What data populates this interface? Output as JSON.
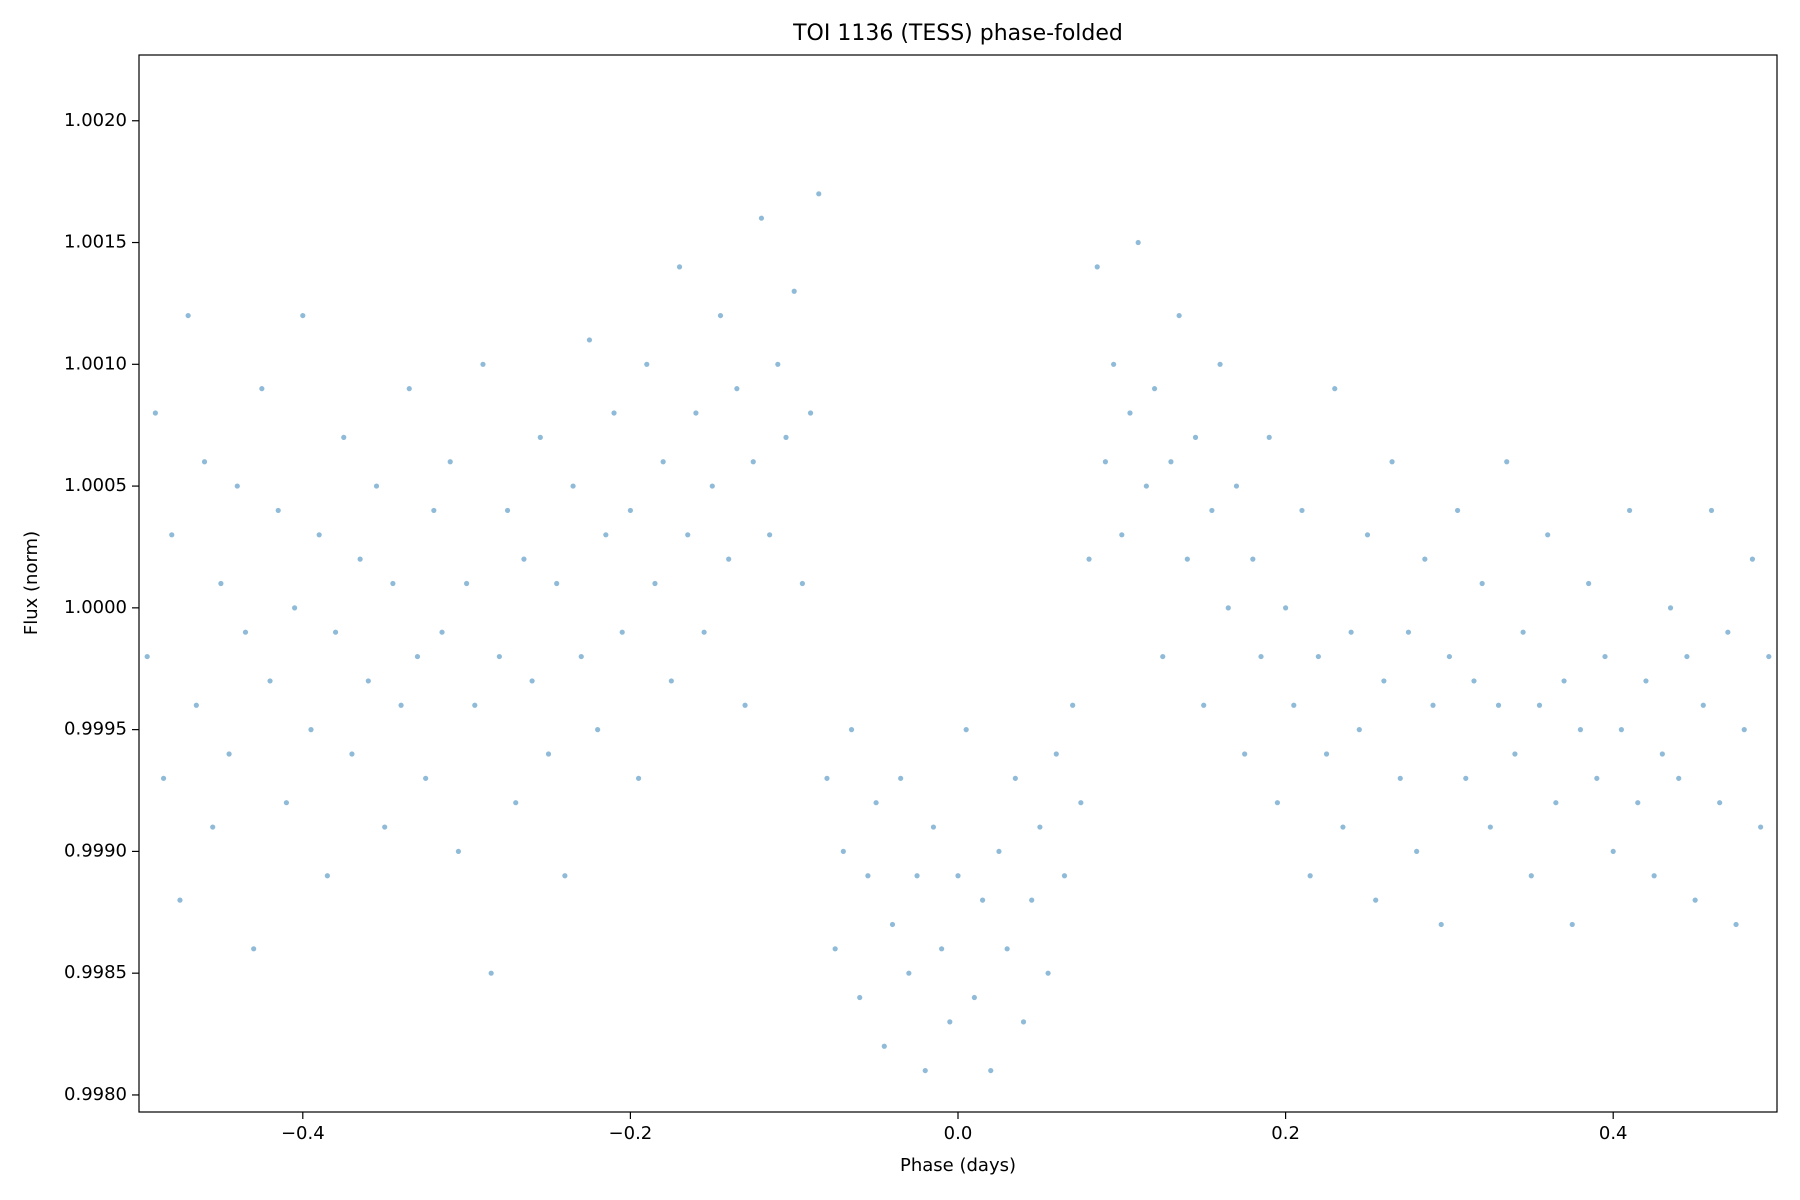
{
  "chart_data": {
    "type": "scatter",
    "title": "TOI 1136 (TESS) phase-folded",
    "x_label": "Phase (days)",
    "y_label": "Flux (norm)",
    "color": "#1f77b4",
    "xlim": [
      -0.5,
      0.5
    ],
    "xticks": [
      {
        "value": -0.4,
        "label": "−0.4"
      },
      {
        "value": -0.2,
        "label": "−0.2"
      },
      {
        "value": 0,
        "label": "0.0"
      },
      0.2,
      0.4
    ],
    "ylim": [
      0.99793,
      1.00227
    ],
    "yticks": [
      {
        "value": 0.998,
        "label": "0.9980"
      },
      0.9985,
      {
        "value": 0.999,
        "label": "0.9990"
      },
      0.9995,
      {
        "value": 1,
        "label": "1.0000"
      },
      1.0005,
      {
        "value": 1.001,
        "label": "1.0010"
      },
      1.0015,
      {
        "value": 1.002,
        "label": "1.0020"
      }
    ],
    "x": [
      -0.495,
      -0.49,
      -0.485,
      -0.48,
      -0.475,
      -0.47,
      -0.465,
      -0.46,
      -0.455,
      -0.45,
      -0.445,
      -0.44,
      -0.435,
      -0.43,
      -0.425,
      -0.42,
      -0.415,
      -0.41,
      -0.405,
      -0.4,
      -0.395,
      -0.39,
      -0.385,
      -0.38,
      -0.375,
      -0.37,
      -0.365,
      -0.36,
      -0.355,
      -0.35,
      -0.345,
      -0.34,
      -0.335,
      -0.33,
      -0.325,
      -0.32,
      -0.315,
      -0.31,
      -0.305,
      -0.3,
      -0.295,
      -0.29,
      -0.285,
      -0.28,
      -0.275,
      -0.27,
      -0.265,
      -0.26,
      -0.255,
      -0.25,
      -0.245,
      -0.24,
      -0.235,
      -0.23,
      -0.225,
      -0.22,
      -0.215,
      -0.21,
      -0.205,
      -0.2,
      -0.195,
      -0.19,
      -0.185,
      -0.18,
      -0.175,
      -0.17,
      -0.165,
      -0.16,
      -0.155,
      -0.15,
      -0.145,
      -0.14,
      -0.135,
      -0.13,
      -0.125,
      -0.12,
      -0.115,
      -0.11,
      -0.105,
      -0.1,
      -0.095,
      -0.09,
      -0.085,
      -0.08,
      -0.075,
      -0.07,
      -0.065,
      -0.06,
      -0.055,
      -0.05,
      -0.045,
      -0.04,
      -0.035,
      -0.03,
      -0.025,
      -0.02,
      -0.015,
      -0.01,
      -0.005,
      0,
      0.005,
      0.01,
      0.015,
      0.02,
      0.025,
      0.03,
      0.035,
      0.04,
      0.045,
      0.05,
      0.055,
      0.06,
      0.065,
      0.07,
      0.075,
      0.08,
      0.085,
      0.09,
      0.095,
      0.1,
      0.105,
      0.11,
      0.115,
      0.12,
      0.125,
      0.13,
      0.135,
      0.14,
      0.145,
      0.15,
      0.155,
      0.16,
      0.165,
      0.17,
      0.175,
      0.18,
      0.185,
      0.19,
      0.195,
      0.2,
      0.205,
      0.21,
      0.215,
      0.22,
      0.225,
      0.23,
      0.235,
      0.24,
      0.245,
      0.25,
      0.255,
      0.26,
      0.265,
      0.27,
      0.275,
      0.28,
      0.285,
      0.29,
      0.295,
      0.3,
      0.305,
      0.31,
      0.315,
      0.32,
      0.325,
      0.33,
      0.335,
      0.34,
      0.345,
      0.35,
      0.355,
      0.36,
      0.365,
      0.37,
      0.375,
      0.38,
      0.385,
      0.39,
      0.395,
      0.4,
      0.405,
      0.41,
      0.415,
      0.42,
      0.425,
      0.43,
      0.435,
      0.44,
      0.445,
      0.45,
      0.455,
      0.46,
      0.465,
      0.47,
      0.475,
      0.48,
      0.485,
      0.49,
      0.495
    ],
    "values": [
      0.9998,
      1.0008,
      0.9993,
      1.0003,
      0.9988,
      1.0012,
      0.9996,
      1.0006,
      0.9991,
      1.0001,
      0.9994,
      1.0005,
      0.9999,
      0.9986,
      1.0009,
      0.9997,
      1.0004,
      0.9992,
      1.0,
      1.0012,
      0.9995,
      1.0003,
      0.9989,
      0.9999,
      1.0007,
      0.9994,
      1.0002,
      0.9997,
      1.0005,
      0.9991,
      1.0001,
      0.9996,
      1.0009,
      0.9998,
      0.9993,
      1.0004,
      0.9999,
      1.0006,
      0.999,
      1.0001,
      0.9996,
      1.001,
      0.9985,
      0.9998,
      1.0004,
      0.9992,
      1.0002,
      0.9997,
      1.0007,
      0.9994,
      1.0001,
      0.9989,
      1.0005,
      0.9998,
      1.0011,
      0.9995,
      1.0003,
      1.0008,
      0.9999,
      1.0004,
      0.9993,
      1.001,
      1.0001,
      1.0006,
      0.9997,
      1.0014,
      1.0003,
      1.0008,
      0.9999,
      1.0005,
      1.0012,
      1.0002,
      1.0009,
      0.9996,
      1.0006,
      1.0016,
      1.0003,
      1.001,
      1.0007,
      1.0013,
      1.0001,
      1.0008,
      1.0017,
      0.9993,
      0.9986,
      0.999,
      0.9995,
      0.9984,
      0.9989,
      0.9992,
      0.9982,
      0.9987,
      0.9993,
      0.9985,
      0.9989,
      0.9981,
      0.9991,
      0.9986,
      0.9983,
      0.9989,
      0.9995,
      0.9984,
      0.9988,
      0.9981,
      0.999,
      0.9986,
      0.9993,
      0.9983,
      0.9988,
      0.9991,
      0.9985,
      0.9994,
      0.9989,
      0.9996,
      0.9992,
      1.0002,
      1.0014,
      1.0006,
      1.001,
      1.0003,
      1.0008,
      1.0015,
      1.0005,
      1.0009,
      0.9998,
      1.0006,
      1.0012,
      1.0002,
      1.0007,
      0.9996,
      1.0004,
      1.001,
      1.0,
      1.0005,
      0.9994,
      1.0002,
      0.9998,
      1.0007,
      0.9992,
      1.0,
      0.9996,
      1.0004,
      0.9989,
      0.9998,
      0.9994,
      1.0009,
      0.9991,
      0.9999,
      0.9995,
      1.0003,
      0.9988,
      0.9997,
      1.0006,
      0.9993,
      0.9999,
      0.999,
      1.0002,
      0.9996,
      0.9987,
      0.9998,
      1.0004,
      0.9993,
      0.9997,
      1.0001,
      0.9991,
      0.9996,
      1.0006,
      0.9994,
      0.9999,
      0.9989,
      0.9996,
      1.0003,
      0.9992,
      0.9997,
      0.9987,
      0.9995,
      1.0001,
      0.9993,
      0.9998,
      0.999,
      0.9995,
      1.0004,
      0.9992,
      0.9997,
      0.9989,
      0.9994,
      1.0,
      0.9993,
      0.9998,
      0.9988,
      0.9996,
      1.0004,
      0.9992,
      0.9999,
      0.9987,
      0.9995,
      1.0002,
      0.9991,
      0.9998
    ]
  }
}
